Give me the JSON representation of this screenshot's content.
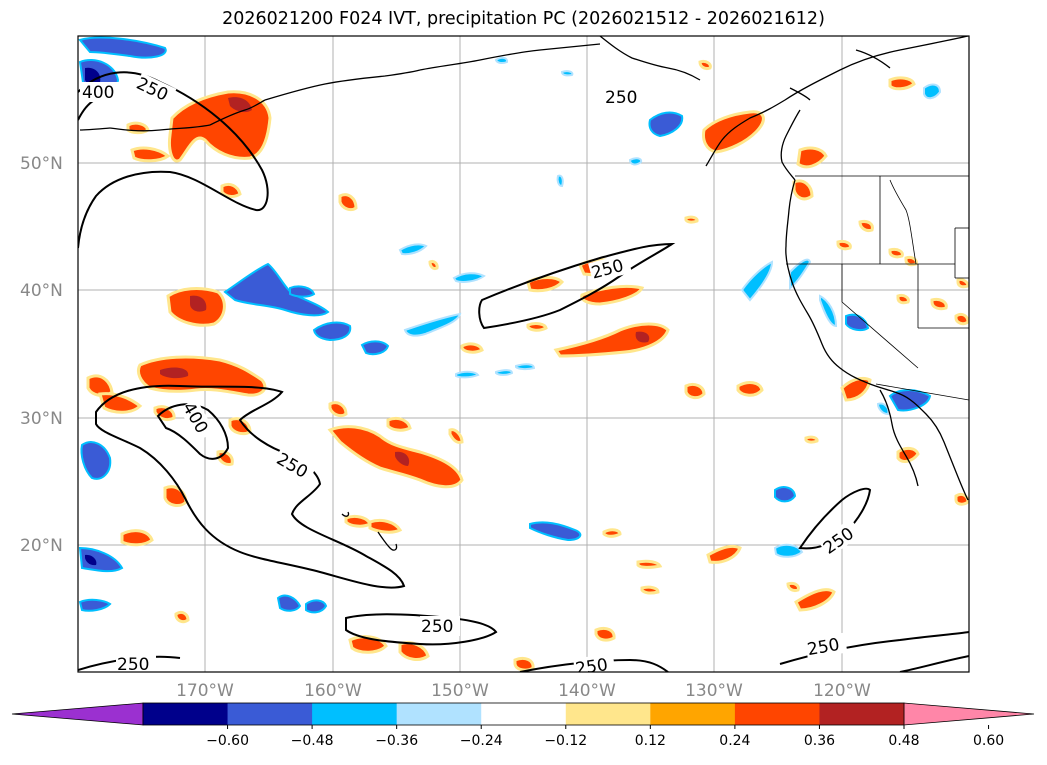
{
  "title": "2026021200 F024 IVT, precipitation PC (2026021512 - 2026021612)",
  "map": {
    "lat_labels": [
      "50°N",
      "40°N",
      "30°N",
      "20°N"
    ],
    "lon_labels": [
      "170°W",
      "160°W",
      "150°W",
      "140°W",
      "130°W",
      "120°W"
    ],
    "contour_labels": [
      "400",
      "250",
      "250",
      "400",
      "250",
      "250",
      "250",
      "250",
      "250",
      "250"
    ]
  },
  "colorbar": {
    "ticks": [
      "−0.60",
      "−0.48",
      "−0.36",
      "−0.24",
      "−0.12",
      "0.12",
      "0.24",
      "0.36",
      "0.48",
      "0.60"
    ],
    "colors": [
      "#9b30d0",
      "#00008b",
      "#3a5bd6",
      "#00bfff",
      "#b0e2ff",
      "#ffffff",
      "#ffe68c",
      "#ffa500",
      "#ff4500",
      "#b22222",
      "#ff86a8"
    ]
  },
  "colors": {
    "neg_strong": "#00008b",
    "neg_mid": "#3a5bd6",
    "neg_light": "#00bfff",
    "neg_pale": "#b0e2ff",
    "pos_pale": "#ffe68c",
    "pos_light": "#ffa500",
    "pos_mid": "#ff4500",
    "pos_strong": "#b22222"
  }
}
